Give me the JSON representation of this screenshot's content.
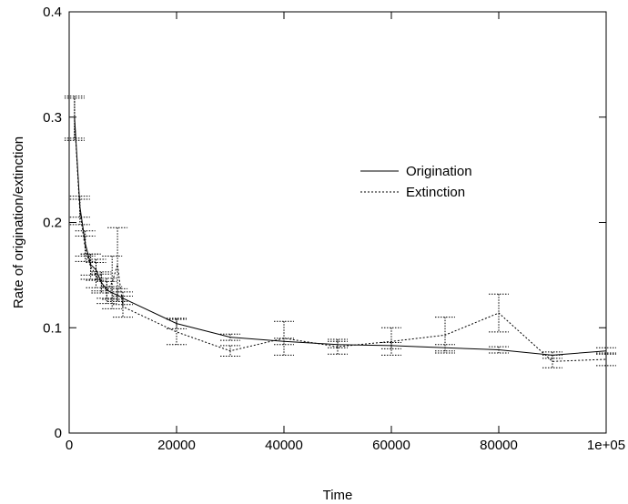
{
  "chart_data": {
    "type": "line",
    "title": "",
    "xlabel": "Time",
    "ylabel": "Rate of origination/extinction",
    "xlim": [
      0,
      100000
    ],
    "ylim": [
      0,
      0.4
    ],
    "x_ticks": [
      0,
      20000,
      40000,
      60000,
      80000,
      100000
    ],
    "x_tick_labels": [
      "0",
      "20000",
      "40000",
      "60000",
      "80000",
      "1e+05"
    ],
    "y_ticks": [
      0,
      0.1,
      0.2,
      0.3,
      0.4
    ],
    "y_tick_labels": [
      "0",
      "0.1",
      "0.2",
      "0.3",
      "0.4"
    ],
    "grid": false,
    "legend_position": "right",
    "series": [
      {
        "name": "Origination",
        "style": "solid",
        "color": "#000000",
        "points": [
          {
            "x": 1000,
            "y": 0.3,
            "err": 0.02
          },
          {
            "x": 2000,
            "y": 0.215,
            "err": 0.01
          },
          {
            "x": 3000,
            "y": 0.18,
            "err": 0.012
          },
          {
            "x": 4000,
            "y": 0.16,
            "err": 0.01
          },
          {
            "x": 5000,
            "y": 0.155,
            "err": 0.01
          },
          {
            "x": 6000,
            "y": 0.143,
            "err": 0.008
          },
          {
            "x": 7000,
            "y": 0.136,
            "err": 0.008
          },
          {
            "x": 8000,
            "y": 0.133,
            "err": 0.006
          },
          {
            "x": 9000,
            "y": 0.131,
            "err": 0.006
          },
          {
            "x": 10000,
            "y": 0.128,
            "err": 0.006
          },
          {
            "x": 20000,
            "y": 0.104,
            "err": 0.005
          },
          {
            "x": 30000,
            "y": 0.091,
            "err": 0.003
          },
          {
            "x": 40000,
            "y": 0.087,
            "err": 0.003
          },
          {
            "x": 50000,
            "y": 0.084,
            "err": 0.003
          },
          {
            "x": 60000,
            "y": 0.083,
            "err": 0.003
          },
          {
            "x": 70000,
            "y": 0.081,
            "err": 0.003
          },
          {
            "x": 80000,
            "y": 0.079,
            "err": 0.003
          },
          {
            "x": 90000,
            "y": 0.074,
            "err": 0.003
          },
          {
            "x": 100000,
            "y": 0.078,
            "err": 0.003
          }
        ]
      },
      {
        "name": "Extinction",
        "style": "dotted",
        "color": "#000000",
        "points": [
          {
            "x": 1000,
            "y": 0.298,
            "err": 0.02
          },
          {
            "x": 2000,
            "y": 0.21,
            "err": 0.012
          },
          {
            "x": 3000,
            "y": 0.175,
            "err": 0.012
          },
          {
            "x": 4000,
            "y": 0.158,
            "err": 0.012
          },
          {
            "x": 5000,
            "y": 0.15,
            "err": 0.012
          },
          {
            "x": 6000,
            "y": 0.143,
            "err": 0.01
          },
          {
            "x": 7000,
            "y": 0.135,
            "err": 0.012
          },
          {
            "x": 8000,
            "y": 0.143,
            "err": 0.025
          },
          {
            "x": 9000,
            "y": 0.16,
            "err": 0.035
          },
          {
            "x": 10000,
            "y": 0.12,
            "err": 0.01
          },
          {
            "x": 20000,
            "y": 0.096,
            "err": 0.012
          },
          {
            "x": 30000,
            "y": 0.078,
            "err": 0.005
          },
          {
            "x": 40000,
            "y": 0.09,
            "err": 0.016
          },
          {
            "x": 50000,
            "y": 0.082,
            "err": 0.007
          },
          {
            "x": 60000,
            "y": 0.087,
            "err": 0.013
          },
          {
            "x": 70000,
            "y": 0.093,
            "err": 0.017
          },
          {
            "x": 80000,
            "y": 0.114,
            "err": 0.018
          },
          {
            "x": 90000,
            "y": 0.068,
            "err": 0.006
          },
          {
            "x": 100000,
            "y": 0.07,
            "err": 0.006
          }
        ]
      }
    ]
  }
}
